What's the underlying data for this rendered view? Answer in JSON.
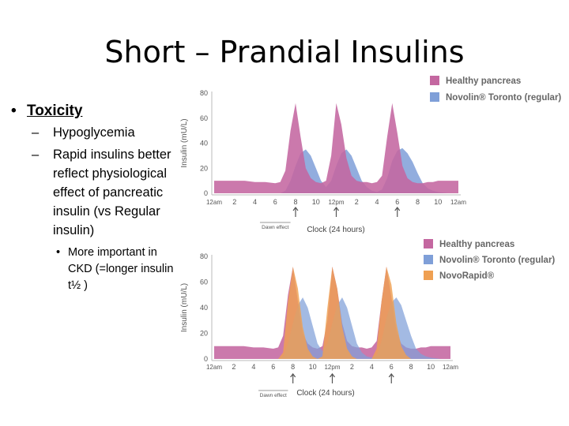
{
  "slide": {
    "title": "Short – Prandial Insulins",
    "bullets": {
      "main": "Toxicity",
      "sub": [
        {
          "dash": "–",
          "text": "Hypoglycemia"
        },
        {
          "dash": "–",
          "text": "Rapid insulins better reflect physiological effect of pancreatic insulin (vs Regular insulin)"
        }
      ],
      "subsub": "More important in CKD (=longer insulin t½ )"
    }
  },
  "chart_data": [
    {
      "type": "area",
      "title": "",
      "xlabel": "Clock (24 hours)",
      "ylabel": "Insulin (mU/L)",
      "ylim": [
        0,
        80
      ],
      "yticks": [
        "0",
        "20",
        "40",
        "60",
        "80"
      ],
      "xlim": [
        0,
        24
      ],
      "xticks": [
        "12am",
        "2",
        "4",
        "6",
        "8",
        "10",
        "12pm",
        "2",
        "4",
        "6",
        "8",
        "10",
        "12am"
      ],
      "annotations": {
        "dawn_label": "Dawn effect",
        "dawn_range": [
          4.5,
          7.5
        ],
        "meal_times": [
          8,
          12,
          18
        ]
      },
      "colors": {
        "Healthy pancreas": "#c467a0",
        "Novolin® Toronto (regular)": "#7f9fd8",
        "overlap": "#9088c4"
      },
      "x": [
        0,
        1,
        2,
        3,
        4,
        5,
        6,
        6.5,
        7,
        7.5,
        8,
        8.5,
        9,
        9.5,
        10,
        10.5,
        11,
        11.5,
        12,
        12.5,
        13,
        13.5,
        14,
        14.5,
        15,
        15.5,
        16,
        16.5,
        17,
        17.5,
        18,
        18.5,
        19,
        19.5,
        20,
        20.5,
        21,
        21.5,
        22,
        23,
        24
      ],
      "series": [
        {
          "name": "Healthy pancreas",
          "values": [
            10,
            10,
            10,
            10,
            9,
            9,
            8,
            9,
            18,
            50,
            72,
            45,
            20,
            12,
            9,
            8,
            10,
            30,
            72,
            55,
            28,
            14,
            10,
            9,
            9,
            8,
            9,
            14,
            45,
            72,
            48,
            22,
            12,
            9,
            8,
            8,
            9,
            9,
            10,
            10,
            10
          ]
        },
        {
          "name": "Novolin® Toronto (regular)",
          "values": [
            0,
            0,
            0,
            0,
            0,
            0,
            0,
            0,
            2,
            10,
            22,
            32,
            35,
            30,
            20,
            10,
            5,
            10,
            22,
            32,
            35,
            30,
            20,
            10,
            5,
            2,
            1,
            3,
            12,
            26,
            34,
            36,
            32,
            25,
            16,
            8,
            4,
            2,
            1,
            0,
            0
          ]
        }
      ],
      "legend": [
        "Healthy pancreas",
        "Novolin® Toronto (regular)"
      ]
    },
    {
      "type": "area",
      "title": "",
      "xlabel": "Clock (24 hours)",
      "ylabel": "Insulin (mU/L)",
      "ylim": [
        0,
        80
      ],
      "yticks": [
        "0",
        "20",
        "40",
        "60",
        "80"
      ],
      "xlim": [
        0,
        24
      ],
      "xticks": [
        "12am",
        "2",
        "4",
        "6",
        "8",
        "10",
        "12pm",
        "2",
        "4",
        "6",
        "8",
        "10",
        "12am"
      ],
      "annotations": {
        "dawn_label": "Dawn effect",
        "dawn_range": [
          4.5,
          7.5
        ],
        "meal_times": [
          8,
          12,
          18
        ]
      },
      "colors": {
        "Healthy pancreas": "#c467a0",
        "Novolin® Toronto (regular)": "#7f9fd8",
        "NovoRapid®": "#efa052"
      },
      "x": [
        0,
        1,
        2,
        3,
        4,
        5,
        6,
        6.5,
        7,
        7.5,
        8,
        8.5,
        9,
        9.5,
        10,
        10.5,
        11,
        11.5,
        12,
        12.5,
        13,
        13.5,
        14,
        14.5,
        15,
        15.5,
        16,
        16.5,
        17,
        17.5,
        18,
        18.5,
        19,
        19.5,
        20,
        20.5,
        21,
        21.5,
        22,
        23,
        24
      ],
      "series": [
        {
          "name": "Healthy pancreas",
          "values": [
            10,
            10,
            10,
            10,
            9,
            9,
            8,
            9,
            18,
            50,
            72,
            45,
            20,
            12,
            9,
            8,
            10,
            30,
            72,
            55,
            28,
            14,
            10,
            9,
            9,
            8,
            9,
            14,
            45,
            72,
            48,
            22,
            12,
            9,
            8,
            8,
            9,
            9,
            10,
            10,
            10
          ]
        },
        {
          "name": "Novolin® Toronto (regular)",
          "values": [
            0,
            0,
            0,
            0,
            0,
            0,
            0,
            0,
            2,
            12,
            28,
            42,
            48,
            40,
            26,
            12,
            6,
            12,
            28,
            42,
            48,
            40,
            26,
            12,
            5,
            2,
            1,
            3,
            14,
            32,
            44,
            48,
            42,
            30,
            18,
            8,
            4,
            2,
            1,
            0,
            0
          ]
        },
        {
          "name": "NovoRapid®",
          "values": [
            0,
            0,
            0,
            0,
            0,
            0,
            0,
            0,
            5,
            45,
            72,
            55,
            25,
            8,
            2,
            0,
            2,
            40,
            72,
            55,
            25,
            8,
            2,
            0,
            0,
            0,
            0,
            8,
            45,
            72,
            58,
            28,
            10,
            3,
            0,
            0,
            0,
            0,
            0,
            0,
            0
          ]
        }
      ],
      "legend": [
        "Healthy pancreas",
        "Novolin® Toronto (regular)",
        "NovoRapid®"
      ]
    }
  ]
}
